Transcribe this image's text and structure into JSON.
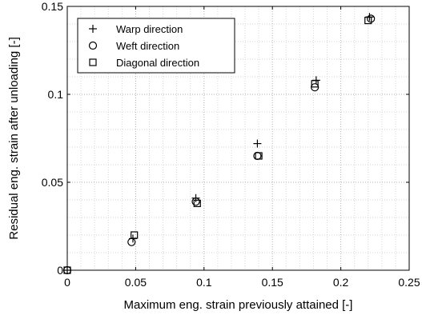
{
  "chart_data": {
    "type": "scatter",
    "title": "",
    "xlabel": "Maximum eng. strain previously attained [-]",
    "ylabel": "Residual eng. strain after unloading [-]",
    "xlim": [
      0,
      0.25
    ],
    "ylim": [
      0,
      0.15
    ],
    "xticks": [
      "0",
      "0.05",
      "0.1",
      "0.15",
      "0.2",
      "0.25"
    ],
    "yticks": [
      "0",
      "0.05",
      "0.1",
      "0.15"
    ],
    "xtick_values": [
      0,
      0.05,
      0.1,
      0.15,
      0.2,
      0.25
    ],
    "ytick_values": [
      0,
      0.05,
      0.1,
      0.15
    ],
    "grid": "major-and-minor dotted",
    "legend_position": "top-left",
    "series": [
      {
        "name": "Warp direction",
        "marker": "plus",
        "points": [
          {
            "x": 0.0,
            "y": 0.0
          },
          {
            "x": 0.048,
            "y": 0.018
          },
          {
            "x": 0.094,
            "y": 0.041
          },
          {
            "x": 0.139,
            "y": 0.072
          },
          {
            "x": 0.182,
            "y": 0.108
          },
          {
            "x": 0.221,
            "y": 0.144
          }
        ]
      },
      {
        "name": "Weft direction",
        "marker": "circle",
        "points": [
          {
            "x": 0.0,
            "y": 0.0
          },
          {
            "x": 0.047,
            "y": 0.016
          },
          {
            "x": 0.094,
            "y": 0.039
          },
          {
            "x": 0.139,
            "y": 0.065
          },
          {
            "x": 0.181,
            "y": 0.104
          },
          {
            "x": 0.222,
            "y": 0.143
          }
        ]
      },
      {
        "name": "Diagonal direction",
        "marker": "square",
        "points": [
          {
            "x": 0.0,
            "y": 0.0
          },
          {
            "x": 0.049,
            "y": 0.02
          },
          {
            "x": 0.095,
            "y": 0.038
          },
          {
            "x": 0.14,
            "y": 0.065
          },
          {
            "x": 0.181,
            "y": 0.106
          },
          {
            "x": 0.22,
            "y": 0.142
          }
        ]
      }
    ]
  }
}
